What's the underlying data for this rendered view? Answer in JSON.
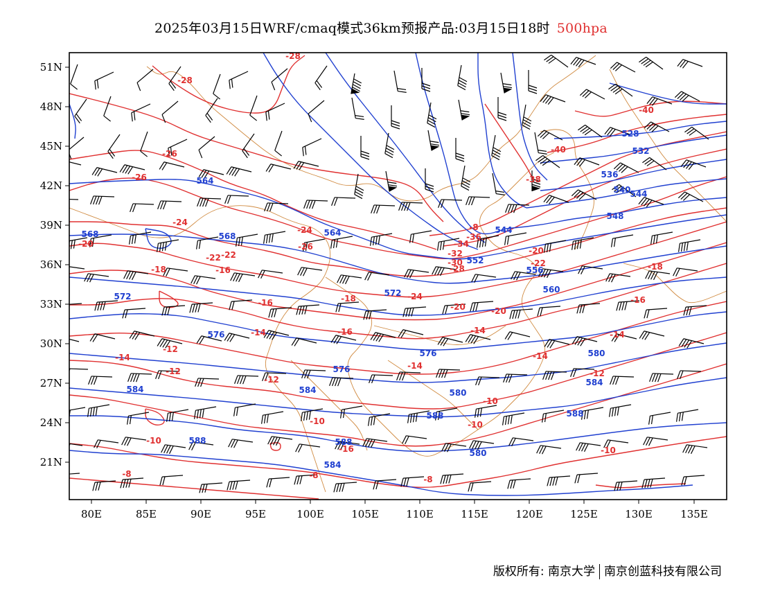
{
  "header": {
    "title_main": "2025年03月15日WRF/cmaq模式36km预报产品:03月15日18时",
    "title_level": "500hpa",
    "level_color": "#e03030"
  },
  "map": {
    "lon_ticks": [
      "80E",
      "85E",
      "90E",
      "95E",
      "100E",
      "105E",
      "110E",
      "115E",
      "120E",
      "125E",
      "130E",
      "135E"
    ],
    "lat_ticks": [
      "51N",
      "48N",
      "45N",
      "42N",
      "39N",
      "36N",
      "33N",
      "30N",
      "27N",
      "24N",
      "21N"
    ],
    "colors": {
      "height": "#2040d0",
      "temperature": "#e03030",
      "boundary": "#d08a40",
      "wind": "#000000"
    },
    "height_labels": [
      "528",
      "532",
      "536",
      "540",
      "544",
      "548",
      "544",
      "552",
      "556",
      "560",
      "564",
      "564",
      "568",
      "568",
      "572",
      "572",
      "576",
      "576",
      "576",
      "580",
      "580",
      "584",
      "584",
      "584",
      "588",
      "588",
      "588",
      "588",
      "584",
      "580"
    ],
    "temp_labels": [
      "-28",
      "-28",
      "-26",
      "-26",
      "-24",
      "-24",
      "-22",
      "-22",
      "-20",
      "-20",
      "-20",
      "-18",
      "-18",
      "-16",
      "-16",
      "-16",
      "-14",
      "-14",
      "-14",
      "-14",
      "-12",
      "-12",
      "-12",
      "-10",
      "-10",
      "-10",
      "-10",
      "-8",
      "-8",
      "-8",
      "-8",
      "-36",
      "-34",
      "-32",
      "-30",
      "-28",
      "-26",
      "-24",
      "-22",
      "-20",
      "-18",
      "-16",
      "-14",
      "-12",
      "-10",
      "-40",
      "-40",
      "-38",
      "-14",
      "-16"
    ]
  },
  "footer": {
    "left": "版权所有: 南京大学",
    "right": "南京创蓝科技有限公司"
  }
}
